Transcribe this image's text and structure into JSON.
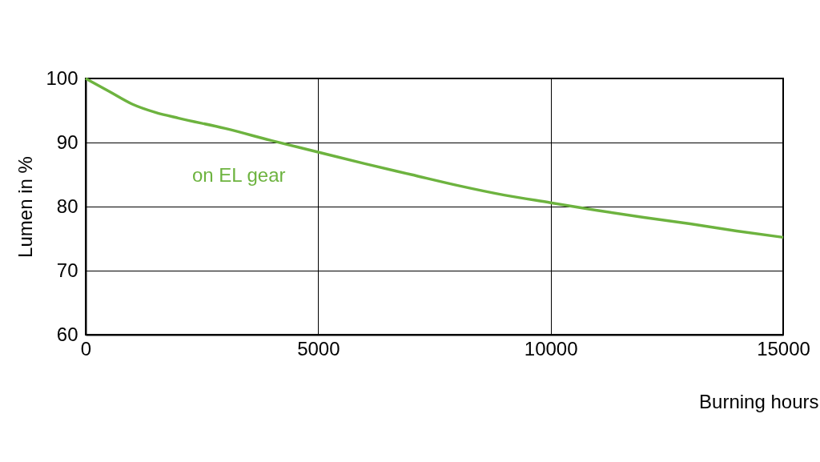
{
  "chart_data": {
    "type": "line",
    "xlabel": "Burning hours",
    "ylabel": "Lumen in %",
    "xlim": [
      0,
      15000
    ],
    "xticks": [
      0,
      5000,
      10000,
      15000
    ],
    "ylim": [
      60,
      100
    ],
    "yticks": [
      60,
      70,
      80,
      90,
      100
    ],
    "grid": true,
    "marker": "none",
    "line_style": "solid",
    "x": [
      0,
      500,
      1000,
      1500,
      2000,
      3000,
      4000,
      5000,
      6000,
      7000,
      8000,
      9000,
      10000,
      11000,
      12000,
      13000,
      14000,
      15000
    ],
    "series": [
      {
        "name": "on EL gear",
        "color": "#6db33f",
        "values": [
          100,
          98,
          96,
          94.7,
          93.8,
          92.2,
          90.3,
          88.5,
          86.7,
          85,
          83.3,
          81.8,
          80.6,
          79.4,
          78.3,
          77.3,
          76.2,
          75.2
        ]
      }
    ]
  }
}
